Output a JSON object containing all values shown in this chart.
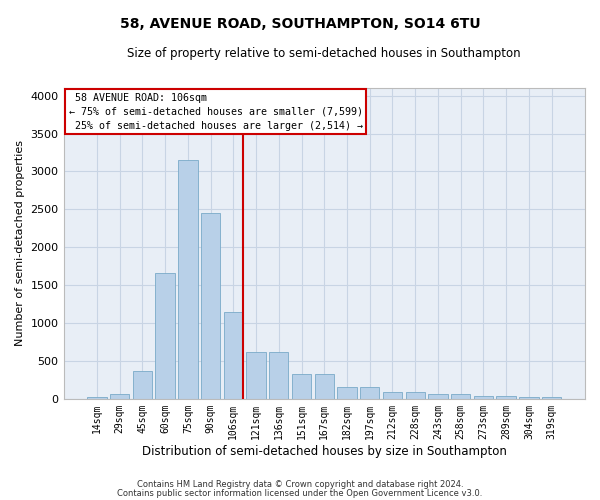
{
  "title": "58, AVENUE ROAD, SOUTHAMPTON, SO14 6TU",
  "subtitle": "Size of property relative to semi-detached houses in Southampton",
  "xlabel": "Distribution of semi-detached houses by size in Southampton",
  "ylabel": "Number of semi-detached properties",
  "footer1": "Contains HM Land Registry data © Crown copyright and database right 2024.",
  "footer2": "Contains public sector information licensed under the Open Government Licence v3.0.",
  "categories": [
    "14sqm",
    "29sqm",
    "45sqm",
    "60sqm",
    "75sqm",
    "90sqm",
    "106sqm",
    "121sqm",
    "136sqm",
    "151sqm",
    "167sqm",
    "182sqm",
    "197sqm",
    "212sqm",
    "228sqm",
    "243sqm",
    "258sqm",
    "273sqm",
    "289sqm",
    "304sqm",
    "319sqm"
  ],
  "values": [
    30,
    70,
    370,
    1660,
    3150,
    2450,
    1150,
    620,
    620,
    330,
    330,
    160,
    160,
    95,
    95,
    65,
    65,
    40,
    40,
    30,
    30
  ],
  "bar_color": "#b8d0e8",
  "bar_edge_color": "#7aaac8",
  "highlight_index": 6,
  "highlight_color": "#cc0000",
  "property_label": "58 AVENUE ROAD: 106sqm",
  "pct_smaller": "75% of semi-detached houses are smaller (7,599)",
  "pct_larger": "25% of semi-detached houses are larger (2,514)",
  "annotation_box_edge": "#cc0000",
  "ylim": [
    0,
    4100
  ],
  "yticks": [
    0,
    500,
    1000,
    1500,
    2000,
    2500,
    3000,
    3500,
    4000
  ],
  "grid_color": "#c8d4e4",
  "bg_color": "#e8eef6"
}
